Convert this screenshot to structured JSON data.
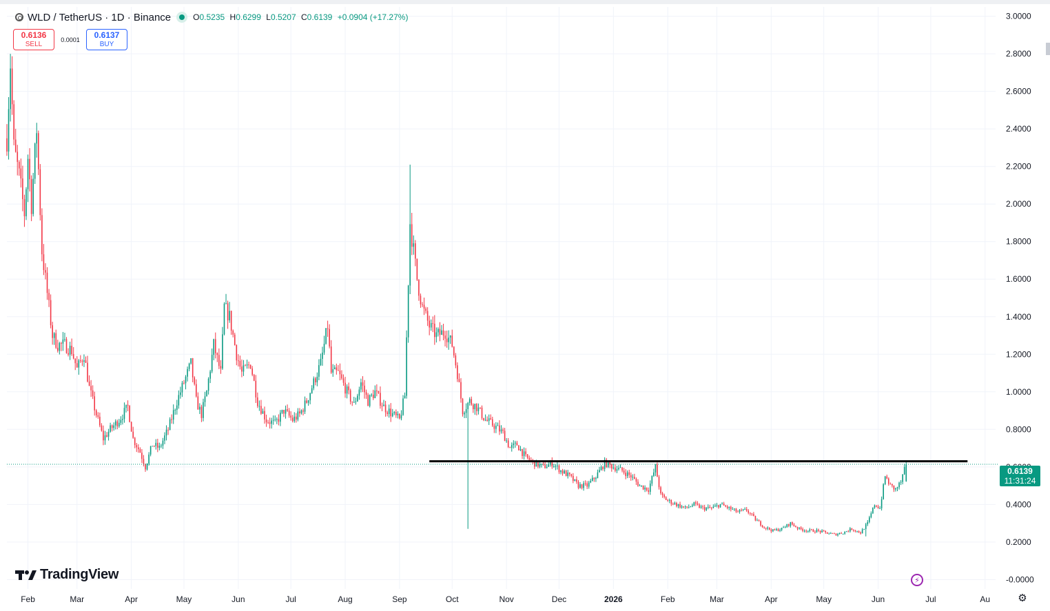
{
  "header": {
    "symbol": "WLD / TetherUS · 1D · Binance",
    "ohlc": [
      {
        "k": "O",
        "v": "0.5235"
      },
      {
        "k": "H",
        "v": "0.6299"
      },
      {
        "k": "L",
        "v": "0.5207"
      },
      {
        "k": "C",
        "v": "0.6139"
      },
      {
        "k": "",
        "v": "+0.0904 (+17.27%)"
      }
    ]
  },
  "trade": {
    "sell_price": "0.6136",
    "sell_label": "SELL",
    "spread": "0.0001",
    "buy_price": "0.6137",
    "buy_label": "BUY"
  },
  "current_price": {
    "price": "0.6139",
    "countdown": "11:31:24"
  },
  "logo": {
    "text": "TradingView"
  },
  "colors": {
    "up": "#089981",
    "down": "#f23645",
    "grid": "#f0f3fa",
    "horizontal_line": "#000000",
    "last_price_line": "#089981"
  },
  "chart_data": {
    "type": "candlestick",
    "y_axis": {
      "min": -0.05,
      "max": 3.05,
      "ticks": [
        "3.0000",
        "2.8000",
        "2.6000",
        "2.4000",
        "2.2000",
        "2.0000",
        "1.8000",
        "1.6000",
        "1.4000",
        "1.2000",
        "1.0000",
        "0.8000",
        "0.6000",
        "0.4000",
        "0.2000",
        "-0.0000"
      ],
      "tick_values": [
        3.0,
        2.8,
        2.6,
        2.4,
        2.2,
        2.0,
        1.8,
        1.6,
        1.4,
        1.2,
        1.0,
        0.8,
        0.6,
        0.4,
        0.2,
        0.0
      ]
    },
    "x_axis": {
      "labels": [
        "Feb",
        "Mar",
        "Apr",
        "May",
        "Jun",
        "Jul",
        "Aug",
        "Sep",
        "Oct",
        "Nov",
        "Dec",
        "2026",
        "Feb",
        "Mar",
        "Apr",
        "May",
        "Jun",
        "Jul",
        "Au"
      ],
      "start": "2025-01-20",
      "end": "2026-08-07",
      "label_dates": [
        "2025-02-01",
        "2025-03-01",
        "2025-04-01",
        "2025-05-01",
        "2025-06-01",
        "2025-07-01",
        "2025-08-01",
        "2025-09-01",
        "2025-10-01",
        "2025-11-01",
        "2025-12-01",
        "2026-01-01",
        "2026-02-01",
        "2026-03-01",
        "2026-04-01",
        "2026-05-01",
        "2026-06-01",
        "2026-07-01",
        "2026-08-01"
      ]
    },
    "horizontal_line": {
      "value": 0.63,
      "from": "2025-09-18",
      "to": "2026-07-22"
    },
    "last_price": 0.6139,
    "price_path": [
      [
        "2025-01-20",
        2.35
      ],
      [
        "2025-01-22",
        2.75
      ],
      [
        "2025-01-24",
        2.3
      ],
      [
        "2025-01-27",
        2.15
      ],
      [
        "2025-01-30",
        1.95
      ],
      [
        "2025-02-01",
        2.25
      ],
      [
        "2025-02-03",
        2.0
      ],
      [
        "2025-02-06",
        2.4
      ],
      [
        "2025-02-09",
        1.75
      ],
      [
        "2025-02-11",
        1.6
      ],
      [
        "2025-02-13",
        1.45
      ],
      [
        "2025-02-15",
        1.3
      ],
      [
        "2025-02-18",
        1.25
      ],
      [
        "2025-02-22",
        1.25
      ],
      [
        "2025-02-26",
        1.22
      ],
      [
        "2025-03-01",
        1.12
      ],
      [
        "2025-03-05",
        1.2
      ],
      [
        "2025-03-08",
        1.02
      ],
      [
        "2025-03-12",
        0.88
      ],
      [
        "2025-03-16",
        0.75
      ],
      [
        "2025-03-20",
        0.8
      ],
      [
        "2025-03-25",
        0.85
      ],
      [
        "2025-03-30",
        0.92
      ],
      [
        "2025-04-02",
        0.75
      ],
      [
        "2025-04-06",
        0.68
      ],
      [
        "2025-04-09",
        0.6
      ],
      [
        "2025-04-13",
        0.72
      ],
      [
        "2025-04-17",
        0.7
      ],
      [
        "2025-04-22",
        0.8
      ],
      [
        "2025-04-27",
        0.95
      ],
      [
        "2025-05-01",
        1.05
      ],
      [
        "2025-05-05",
        1.15
      ],
      [
        "2025-05-08",
        0.95
      ],
      [
        "2025-05-11",
        0.88
      ],
      [
        "2025-05-14",
        1.0
      ],
      [
        "2025-05-18",
        1.25
      ],
      [
        "2025-05-22",
        1.1
      ],
      [
        "2025-05-24",
        1.45
      ],
      [
        "2025-05-27",
        1.4
      ],
      [
        "2025-05-31",
        1.2
      ],
      [
        "2025-06-03",
        1.1
      ],
      [
        "2025-06-08",
        1.15
      ],
      [
        "2025-06-12",
        0.95
      ],
      [
        "2025-06-17",
        0.85
      ],
      [
        "2025-06-22",
        0.83
      ],
      [
        "2025-06-27",
        0.9
      ],
      [
        "2025-07-02",
        0.85
      ],
      [
        "2025-07-06",
        0.88
      ],
      [
        "2025-07-10",
        0.95
      ],
      [
        "2025-07-14",
        1.05
      ],
      [
        "2025-07-18",
        1.15
      ],
      [
        "2025-07-22",
        1.35
      ],
      [
        "2025-07-24",
        1.1
      ],
      [
        "2025-07-28",
        1.1
      ],
      [
        "2025-08-02",
        1.0
      ],
      [
        "2025-08-06",
        0.93
      ],
      [
        "2025-08-10",
        1.05
      ],
      [
        "2025-08-14",
        0.95
      ],
      [
        "2025-08-18",
        1.0
      ],
      [
        "2025-08-23",
        0.92
      ],
      [
        "2025-08-28",
        0.88
      ],
      [
        "2025-09-01",
        0.85
      ],
      [
        "2025-09-04",
        0.98
      ],
      [
        "2025-09-07",
        1.9
      ],
      [
        "2025-09-09",
        1.75
      ],
      [
        "2025-09-11",
        1.6
      ],
      [
        "2025-09-14",
        1.45
      ],
      [
        "2025-09-18",
        1.35
      ],
      [
        "2025-09-22",
        1.3
      ],
      [
        "2025-09-27",
        1.32
      ],
      [
        "2025-10-01",
        1.25
      ],
      [
        "2025-10-04",
        1.1
      ],
      [
        "2025-10-07",
        0.9
      ],
      [
        "2025-10-11",
        0.95
      ],
      [
        "2025-10-15",
        0.92
      ],
      [
        "2025-10-20",
        0.85
      ],
      [
        "2025-10-25",
        0.82
      ],
      [
        "2025-10-30",
        0.78
      ],
      [
        "2025-11-03",
        0.7
      ],
      [
        "2025-11-07",
        0.72
      ],
      [
        "2025-11-12",
        0.65
      ],
      [
        "2025-11-17",
        0.62
      ],
      [
        "2025-11-22",
        0.6
      ],
      [
        "2025-11-27",
        0.62
      ],
      [
        "2025-12-02",
        0.58
      ],
      [
        "2025-12-07",
        0.55
      ],
      [
        "2025-12-12",
        0.5
      ],
      [
        "2025-12-17",
        0.5
      ],
      [
        "2025-12-22",
        0.55
      ],
      [
        "2025-12-27",
        0.62
      ],
      [
        "2026-01-01",
        0.6
      ],
      [
        "2026-01-06",
        0.58
      ],
      [
        "2026-01-11",
        0.55
      ],
      [
        "2026-01-16",
        0.5
      ],
      [
        "2026-01-21",
        0.48
      ],
      [
        "2026-01-25",
        0.6
      ],
      [
        "2026-01-28",
        0.45
      ],
      [
        "2026-02-01",
        0.42
      ],
      [
        "2026-02-06",
        0.4
      ],
      [
        "2026-02-11",
        0.38
      ],
      [
        "2026-02-16",
        0.4
      ],
      [
        "2026-02-21",
        0.38
      ],
      [
        "2026-02-26",
        0.38
      ],
      [
        "2026-03-03",
        0.4
      ],
      [
        "2026-03-08",
        0.38
      ],
      [
        "2026-03-13",
        0.36
      ],
      [
        "2026-03-18",
        0.37
      ],
      [
        "2026-03-23",
        0.32
      ],
      [
        "2026-03-28",
        0.28
      ],
      [
        "2026-04-02",
        0.26
      ],
      [
        "2026-04-07",
        0.27
      ],
      [
        "2026-04-12",
        0.3
      ],
      [
        "2026-04-17",
        0.27
      ],
      [
        "2026-04-22",
        0.26
      ],
      [
        "2026-04-27",
        0.26
      ],
      [
        "2026-05-02",
        0.25
      ],
      [
        "2026-05-07",
        0.24
      ],
      [
        "2026-05-12",
        0.25
      ],
      [
        "2026-05-17",
        0.27
      ],
      [
        "2026-05-22",
        0.25
      ],
      [
        "2026-05-26",
        0.3
      ],
      [
        "2026-05-30",
        0.4
      ],
      [
        "2026-06-02",
        0.38
      ],
      [
        "2026-06-05",
        0.55
      ],
      [
        "2026-06-08",
        0.5
      ],
      [
        "2026-06-11",
        0.48
      ],
      [
        "2026-06-14",
        0.52
      ],
      [
        "2026-06-17",
        0.6139
      ]
    ],
    "annotated_points": [
      {
        "date": "2025-01-22",
        "high": 2.8
      },
      {
        "date": "2025-09-07",
        "high": 2.21
      },
      {
        "date": "2025-10-10",
        "low": 0.27
      },
      {
        "date": "2026-05-25",
        "low": 0.23
      }
    ]
  }
}
